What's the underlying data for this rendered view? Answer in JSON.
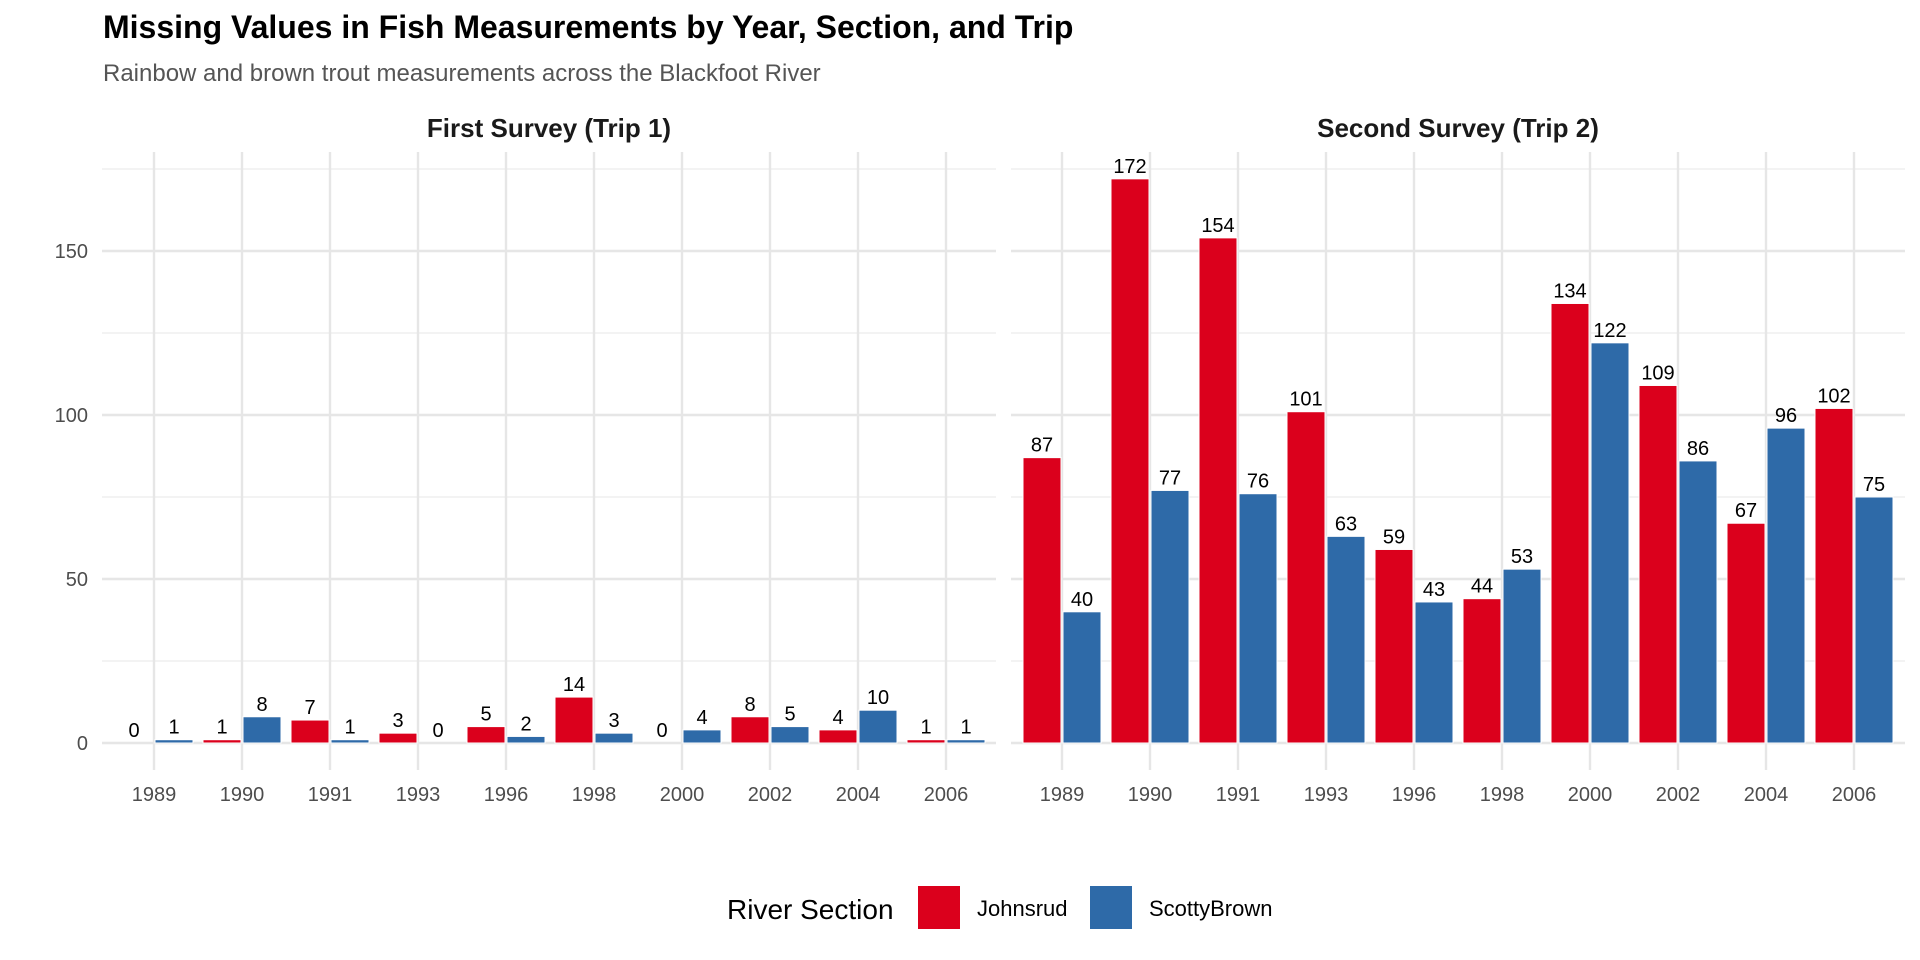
{
  "chart_data": {
    "type": "bar",
    "title": "Missing Values in Fish Measurements by Year, Section, and Trip",
    "subtitle": "Rainbow and brown trout measurements across the Blackfoot River",
    "xlabel": "",
    "ylabel": "",
    "ylim": [
      0,
      180
    ],
    "yticks": [
      0,
      50,
      100,
      150
    ],
    "grid": true,
    "categories": [
      "1989",
      "1990",
      "1991",
      "1993",
      "1996",
      "1998",
      "2000",
      "2002",
      "2004",
      "2006"
    ],
    "legend": {
      "title": "River Section",
      "position": "bottom",
      "entries": [
        "Johnsrud",
        "ScottyBrown"
      ]
    },
    "colors": {
      "Johnsrud": "#db001c",
      "ScottyBrown": "#2e6aa8"
    },
    "panels": [
      {
        "label": "First Survey (Trip 1)",
        "series": [
          {
            "name": "Johnsrud",
            "values": [
              0,
              1,
              7,
              3,
              5,
              14,
              0,
              8,
              4,
              1
            ]
          },
          {
            "name": "ScottyBrown",
            "values": [
              1,
              8,
              1,
              0,
              2,
              3,
              4,
              5,
              10,
              1
            ]
          }
        ]
      },
      {
        "label": "Second Survey (Trip 2)",
        "series": [
          {
            "name": "Johnsrud",
            "values": [
              87,
              172,
              154,
              101,
              59,
              44,
              134,
              109,
              67,
              102
            ]
          },
          {
            "name": "ScottyBrown",
            "values": [
              40,
              77,
              76,
              63,
              43,
              53,
              122,
              86,
              96,
              75
            ]
          }
        ]
      }
    ]
  }
}
